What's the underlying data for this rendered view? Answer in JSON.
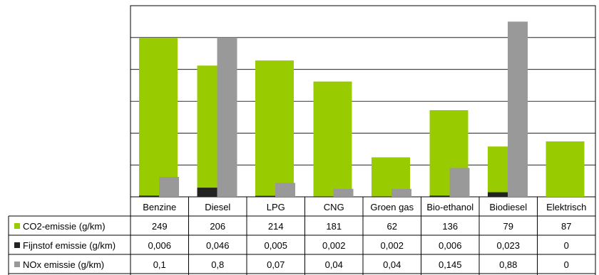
{
  "chart_data": {
    "type": "bar",
    "categories": [
      "Benzine",
      "Diesel",
      "LPG",
      "CNG",
      "Groen gas",
      "Bio-ethanol",
      "Biodiesel",
      "Elektrisch"
    ],
    "series": [
      {
        "name": "CO2-emissie (g/km)",
        "color": "#99cc00",
        "values": [
          249,
          206,
          214,
          181,
          62,
          136,
          79,
          87
        ],
        "table_values": [
          "249",
          "206",
          "214",
          "181",
          "62",
          "136",
          "79",
          "87"
        ]
      },
      {
        "name": "Fijnstof emissie (g/km)",
        "color": "#222222",
        "values": [
          0.006,
          0.046,
          0.005,
          0.002,
          0.002,
          0.006,
          0.023,
          0
        ],
        "table_values": [
          "0,006",
          "0,046",
          "0,005",
          "0,002",
          "0,002",
          "0,006",
          "0,023",
          "0"
        ]
      },
      {
        "name": "NOx emissie (g/km)",
        "color": "#999999",
        "values": [
          0.1,
          0.8,
          0.07,
          0.04,
          0.04,
          0.145,
          0.88,
          0
        ],
        "table_values": [
          "0,1",
          "0,8",
          "0,07",
          "0,04",
          "0,04",
          "0,145",
          "0,88",
          "0"
        ]
      }
    ],
    "axes": {
      "primary_max": 300,
      "secondary_max": 0.96,
      "gridlines": 6,
      "tick_labels_shown": false
    },
    "grid": true,
    "legend": "table-left"
  }
}
